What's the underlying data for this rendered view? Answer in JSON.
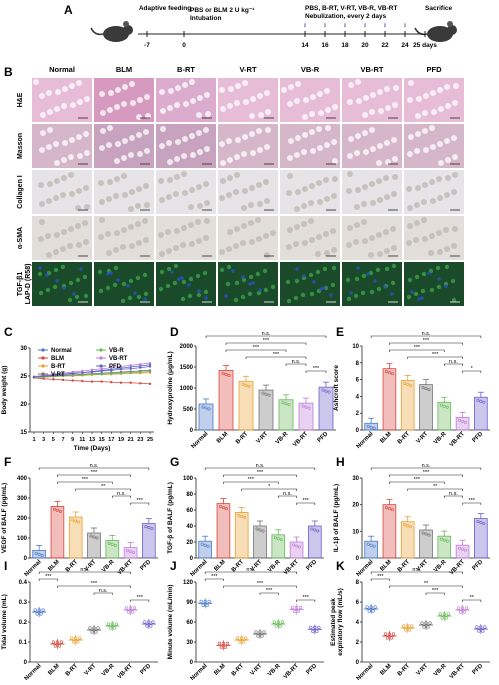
{
  "panel_labels": [
    "A",
    "B",
    "C",
    "D",
    "E",
    "F",
    "G",
    "H",
    "I",
    "J",
    "K"
  ],
  "timeline": {
    "days": [
      "-7",
      "0",
      "14",
      "16",
      "18",
      "20",
      "22",
      "24",
      "25 days"
    ],
    "labels": [
      "Adaptive feeding",
      "PBS or BLM 2 U kg⁻¹",
      "Intubation",
      "PBS, B-RT, V-RT, VB-R, VB-RT",
      "Nebulization, every 2 days",
      "Sacrifice"
    ]
  },
  "histology": {
    "columns": [
      "Normal",
      "BLM",
      "B-RT",
      "V-RT",
      "VB-R",
      "VB-RT",
      "PFD"
    ],
    "rows": [
      "H&E",
      "Masson",
      "Collagen I",
      "α-SMA",
      "TGF-β1\nLAP-D (R58)"
    ],
    "row_colors": [
      "#e7bcd7",
      "#d6b6c9",
      "#e6e4e6",
      "#e2ded9",
      "#1a4a2a"
    ]
  },
  "colors": {
    "Normal": "#4a78c8",
    "BLM": "#d9443c",
    "B-RT": "#e8a030",
    "V-RT": "#707070",
    "VB-R": "#68b85a",
    "VB-RT": "#c07cd8",
    "PFD": "#6b5fc8"
  },
  "chart_data": [
    {
      "id": "C",
      "type": "line",
      "xlabel": "Time (Days)",
      "ylabel": "Body weight (g)",
      "x": [
        1,
        3,
        5,
        7,
        9,
        11,
        13,
        15,
        17,
        19,
        21,
        23,
        25
      ],
      "ylim": [
        15,
        30
      ],
      "yticks": [
        15,
        20,
        25,
        30
      ],
      "series": [
        {
          "name": "Normal",
          "values": [
            24.8,
            25.0,
            25.2,
            25.3,
            25.5,
            25.6,
            25.8,
            26.0,
            26.2,
            26.4,
            26.6,
            26.8,
            27.0
          ]
        },
        {
          "name": "BLM",
          "values": [
            24.7,
            24.5,
            24.4,
            24.3,
            24.2,
            24.1,
            24.0,
            24.0,
            23.9,
            23.8,
            23.8,
            23.7,
            23.6
          ]
        },
        {
          "name": "B-RT",
          "values": [
            24.8,
            24.8,
            24.9,
            25.0,
            25.0,
            25.1,
            25.2,
            25.3,
            25.3,
            25.4,
            25.5,
            25.5,
            25.6
          ]
        },
        {
          "name": "V-RT",
          "values": [
            24.8,
            24.9,
            25.0,
            25.1,
            25.2,
            25.3,
            25.4,
            25.5,
            25.6,
            25.7,
            25.8,
            25.9,
            26.0
          ]
        },
        {
          "name": "VB-R",
          "values": [
            24.7,
            24.8,
            24.9,
            25.0,
            25.1,
            25.2,
            25.3,
            25.3,
            25.4,
            25.5,
            25.6,
            25.7,
            25.8
          ]
        },
        {
          "name": "VB-RT",
          "values": [
            24.9,
            25.1,
            25.3,
            25.5,
            25.7,
            25.9,
            26.1,
            26.3,
            26.5,
            26.7,
            26.9,
            27.1,
            27.3
          ]
        },
        {
          "name": "PFD",
          "values": [
            24.8,
            25.0,
            25.1,
            25.3,
            25.4,
            25.6,
            25.7,
            25.9,
            26.0,
            26.2,
            26.3,
            26.5,
            26.7
          ]
        }
      ]
    },
    {
      "id": "D",
      "type": "bar",
      "ylabel": "Hydroxyproline (μg/mL)",
      "ylim": [
        0,
        2000
      ],
      "yticks": [
        0,
        500,
        1000,
        1500,
        2000
      ],
      "categories": [
        "Normal",
        "BLM",
        "B-RT",
        "V-RT",
        "VB-R",
        "VB-RT",
        "PFD"
      ],
      "values": [
        620,
        1420,
        1160,
        950,
        720,
        640,
        1020
      ],
      "annotations": [
        "n.s.",
        "***",
        "***",
        "***",
        "n.s.",
        "***"
      ]
    },
    {
      "id": "E",
      "type": "bar",
      "ylabel": "Ashcroft score",
      "ylim": [
        0,
        10
      ],
      "yticks": [
        0,
        2,
        4,
        6,
        8,
        10
      ],
      "categories": [
        "Normal",
        "BLM",
        "B-RT",
        "V-RT",
        "VB-R",
        "VB-RT",
        "PFD"
      ],
      "values": [
        0.8,
        7.3,
        5.9,
        5.4,
        3.3,
        1.5,
        3.9
      ],
      "annotations": [
        "n.s.",
        "***",
        "***",
        "***",
        "n.s.",
        "*"
      ]
    },
    {
      "id": "F",
      "type": "bar",
      "ylabel": "VEGF of BALF (pg/mL)",
      "ylim": [
        0,
        400
      ],
      "yticks": [
        0,
        100,
        200,
        300,
        400
      ],
      "categories": [
        "Normal",
        "BLM",
        "B-RT",
        "V-RT",
        "VB-R",
        "VB-RT",
        "PFD"
      ],
      "values": [
        38,
        258,
        205,
        125,
        88,
        52,
        172
      ],
      "annotations": [
        "n.s.",
        "***",
        "***",
        "**",
        "n.s.",
        "***"
      ]
    },
    {
      "id": "G",
      "type": "bar",
      "ylabel": "TGF-β of BALF (pg/mL)",
      "ylim": [
        0,
        100
      ],
      "yticks": [
        0,
        20,
        40,
        60,
        80,
        100
      ],
      "categories": [
        "Normal",
        "BLM",
        "B-RT",
        "V-RT",
        "VB-R",
        "VB-RT",
        "PFD"
      ],
      "values": [
        21,
        68,
        57,
        40,
        29,
        20,
        40
      ],
      "annotations": [
        "n.s.",
        "***",
        "***",
        "*",
        "n.s.",
        "***"
      ]
    },
    {
      "id": "H",
      "type": "bar",
      "ylabel": "IL-1β of BALF (pg/mL)",
      "ylim": [
        0,
        30
      ],
      "yticks": [
        0,
        10,
        20,
        30
      ],
      "categories": [
        "Normal",
        "BLM",
        "B-RT",
        "V-RT",
        "VB-R",
        "VB-RT",
        "PFD"
      ],
      "values": [
        6.3,
        20.0,
        13.6,
        10.5,
        8.2,
        4.8,
        14.8
      ],
      "annotations": [
        "n.s.",
        "***",
        "***",
        "**",
        "n.s.",
        "***"
      ]
    },
    {
      "id": "I",
      "type": "scatter",
      "ylabel": "Tidal volume (mL)",
      "ylim": [
        0,
        0.4
      ],
      "yticks": [
        0,
        0.1,
        0.2,
        0.3,
        0.4
      ],
      "categories": [
        "Normal",
        "BLM",
        "B-RT",
        "V-RT",
        "VB-R",
        "VB-RT",
        "PFD"
      ],
      "values": [
        0.25,
        0.09,
        0.11,
        0.16,
        0.18,
        0.26,
        0.19
      ],
      "annotations": [
        "n.s.",
        "***",
        "***",
        "n.s.",
        "***"
      ]
    },
    {
      "id": "J",
      "type": "scatter",
      "ylabel": "Minute volume (mL/min)",
      "ylim": [
        0,
        120
      ],
      "yticks": [
        0,
        30,
        60,
        90,
        120
      ],
      "categories": [
        "Normal",
        "BLM",
        "B-RT",
        "V-RT",
        "VB-R",
        "VB-RT",
        "PFD"
      ],
      "values": [
        88,
        25,
        33,
        42,
        57,
        79,
        49
      ],
      "annotations": [
        "n.s.",
        "***",
        "***",
        "***",
        "***"
      ]
    },
    {
      "id": "K",
      "type": "scatter",
      "ylabel": "Estimated peak\nexpiratory flow (mL/s)",
      "ylim": [
        0,
        8
      ],
      "yticks": [
        0,
        2,
        4,
        6,
        8
      ],
      "categories": [
        "Normal",
        "BLM",
        "B-RT",
        "V-RT",
        "VB-R",
        "VB-RT",
        "PFD"
      ],
      "values": [
        5.3,
        2.6,
        3.4,
        3.7,
        4.6,
        5.2,
        3.3
      ],
      "annotations": [
        "n.s.",
        "***",
        "**",
        "***",
        "**"
      ]
    }
  ]
}
